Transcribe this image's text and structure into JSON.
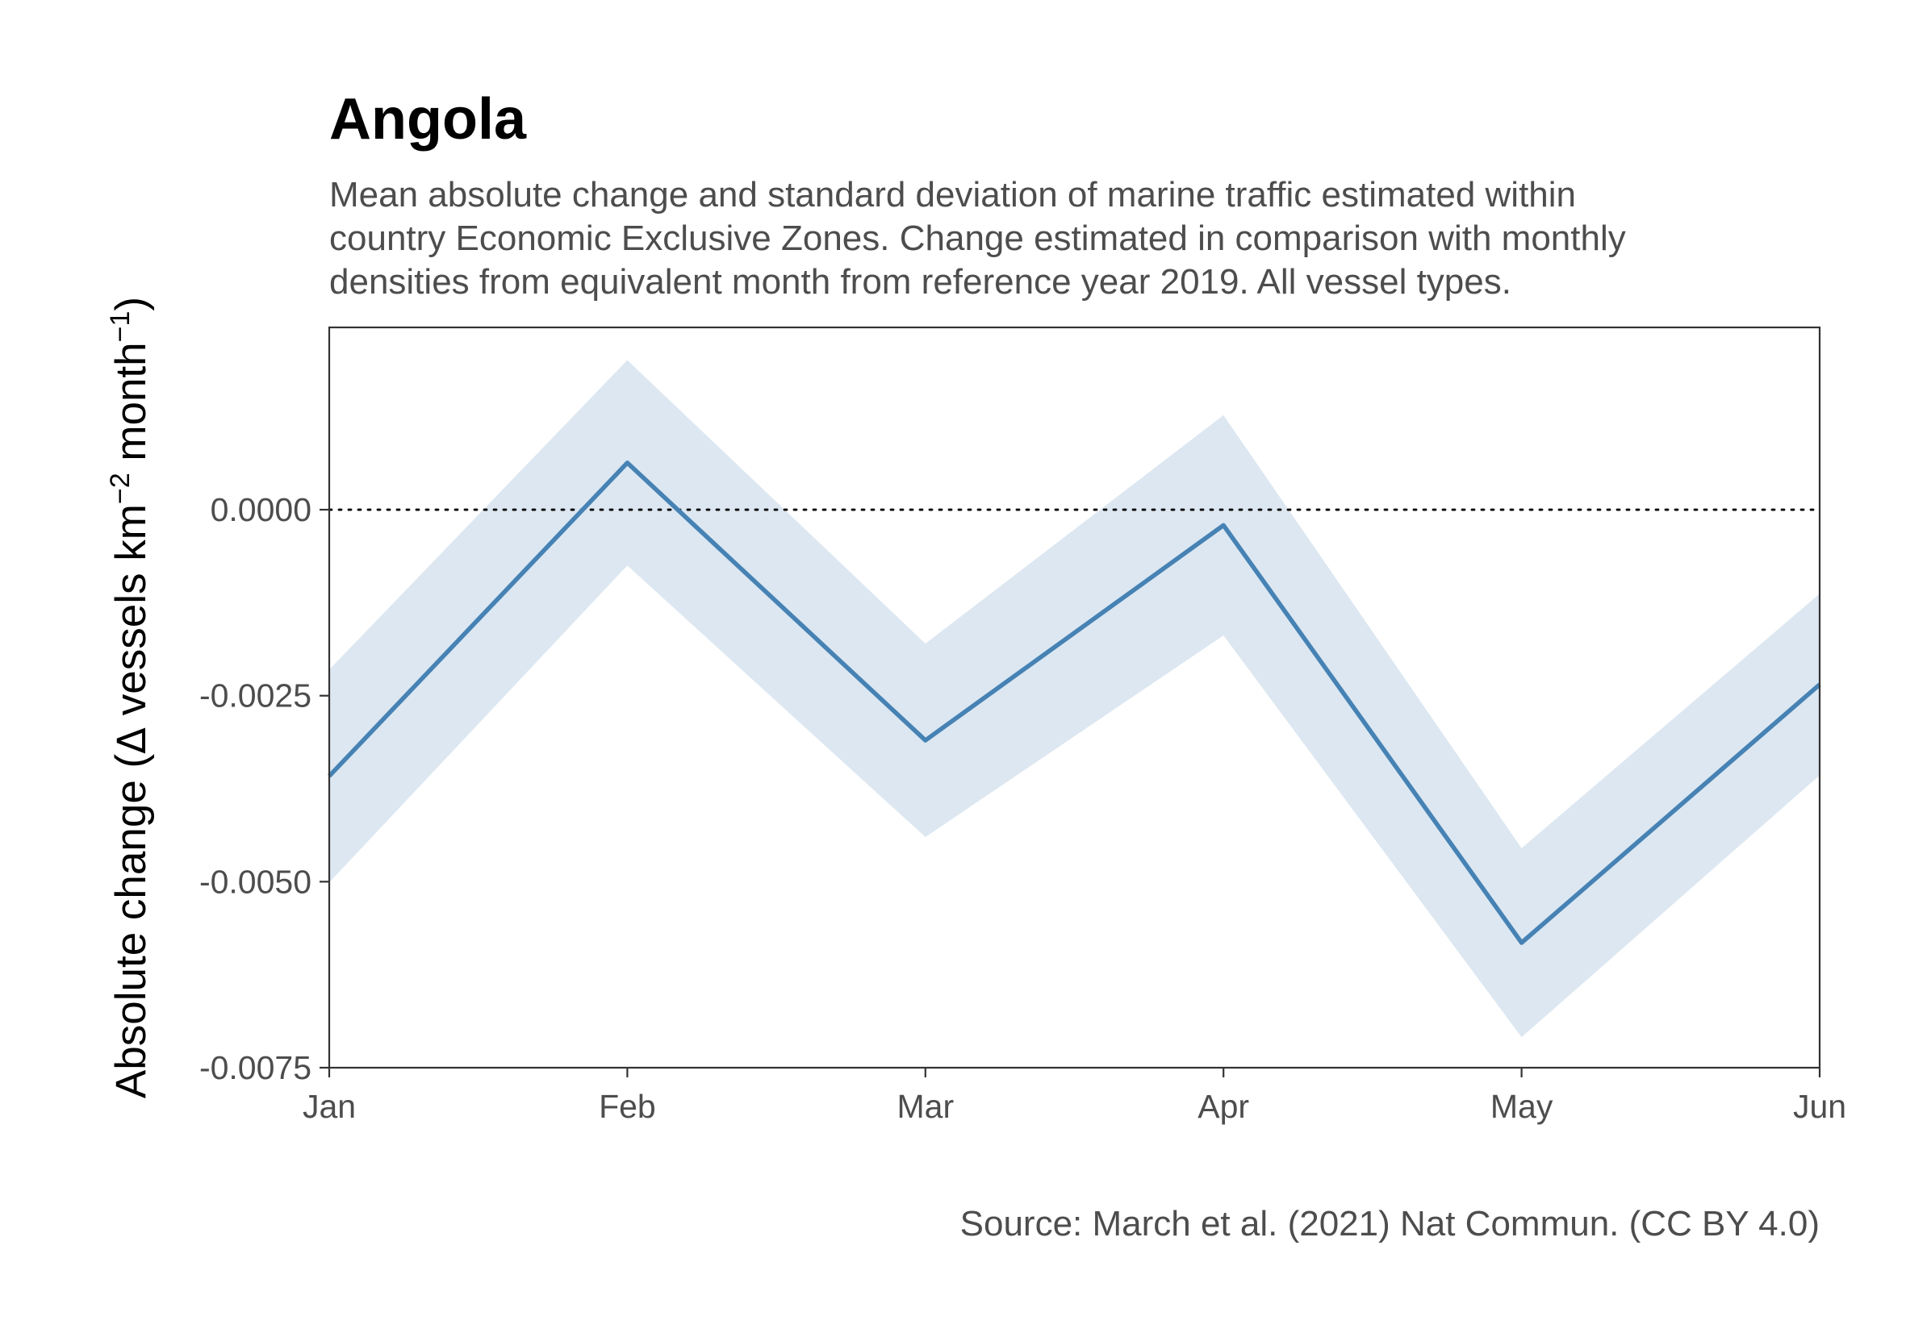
{
  "chart_data": {
    "type": "line",
    "title": "Angola",
    "subtitle_lines": [
      "Mean absolute change and standard deviation of marine traffic estimated within",
      "country Economic Exclusive Zones. Change estimated in comparison with monthly",
      "densities from equivalent month from reference year 2019. All vessel types."
    ],
    "ylabel": {
      "prefix": "Absolute change (",
      "delta": "Δ",
      "vessels_km": " vessels km",
      "sup_km": "−2",
      "month": " month",
      "sup_month": "−1",
      "suffix": ")"
    },
    "caption": "Source: March et al. (2021) Nat Commun. (CC BY 4.0)",
    "x": [
      "Jan",
      "Feb",
      "Mar",
      "Apr",
      "May",
      "Jun"
    ],
    "series": [
      {
        "values": [
          -0.00358,
          0.00063,
          -0.0031,
          -0.00021,
          -0.00582,
          -0.00235
        ],
        "sd": [
          0.00143,
          0.00138,
          0.0013,
          0.00148,
          0.00127,
          0.00122
        ]
      }
    ],
    "yticks": [
      0.0,
      -0.0025,
      -0.005,
      -0.0075
    ],
    "ytick_labels": [
      "0.0000",
      "-0.0025",
      "-0.0050",
      "-0.0075"
    ],
    "ylim": [
      -0.0075,
      0.00245
    ],
    "reference_line": 0.0,
    "grid": false,
    "colors": {
      "line": "#4682b4",
      "band": "#dce7f1",
      "axis": "#333333",
      "text": "#4d4d4d"
    }
  }
}
